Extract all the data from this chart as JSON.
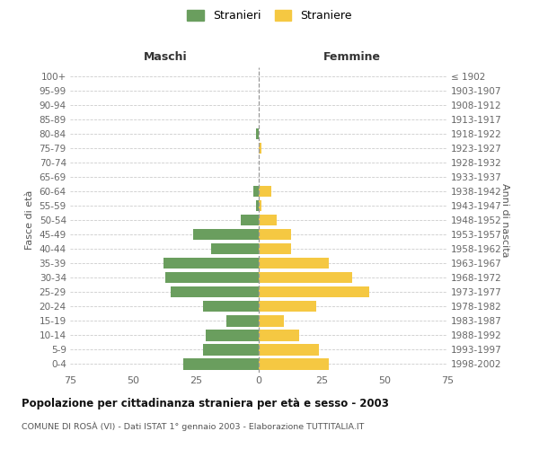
{
  "age_groups": [
    "100+",
    "95-99",
    "90-94",
    "85-89",
    "80-84",
    "75-79",
    "70-74",
    "65-69",
    "60-64",
    "55-59",
    "50-54",
    "45-49",
    "40-44",
    "35-39",
    "30-34",
    "25-29",
    "20-24",
    "15-19",
    "10-14",
    "5-9",
    "0-4"
  ],
  "birth_years": [
    "≤ 1902",
    "1903-1907",
    "1908-1912",
    "1913-1917",
    "1918-1922",
    "1923-1927",
    "1928-1932",
    "1933-1937",
    "1938-1942",
    "1943-1947",
    "1948-1952",
    "1953-1957",
    "1958-1962",
    "1963-1967",
    "1968-1972",
    "1973-1977",
    "1978-1982",
    "1983-1987",
    "1988-1992",
    "1993-1997",
    "1998-2002"
  ],
  "maschi": [
    0,
    0,
    0,
    0,
    1,
    0,
    0,
    0,
    2,
    1,
    7,
    26,
    19,
    38,
    37,
    35,
    22,
    13,
    21,
    22,
    30
  ],
  "femmine": [
    0,
    0,
    0,
    0,
    0,
    1,
    0,
    0,
    5,
    1,
    7,
    13,
    13,
    28,
    37,
    44,
    23,
    10,
    16,
    24,
    28
  ],
  "male_color": "#6a9e5e",
  "female_color": "#f5c842",
  "title": "Popolazione per cittadinanza straniera per età e sesso - 2003",
  "subtitle": "COMUNE DI ROSÀ (VI) - Dati ISTAT 1° gennaio 2003 - Elaborazione TUTTITALIA.IT",
  "left_header": "Maschi",
  "right_header": "Femmine",
  "left_ylabel": "Fasce di età",
  "right_ylabel": "Anni di nascita",
  "legend_male": "Stranieri",
  "legend_female": "Straniere",
  "xlim": 75,
  "background_color": "#ffffff",
  "grid_color": "#cccccc"
}
